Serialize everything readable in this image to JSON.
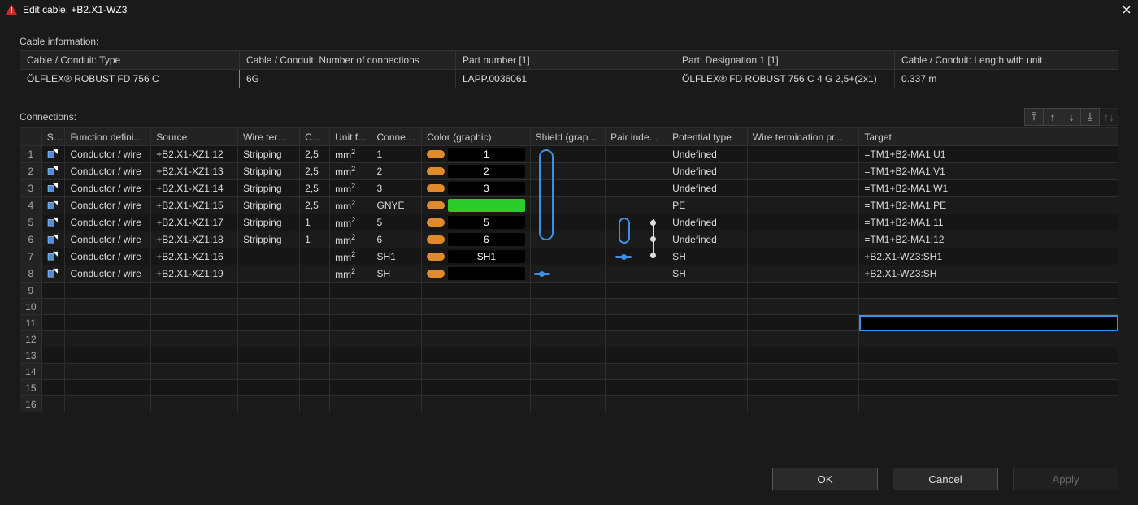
{
  "window": {
    "title": "Edit cable: +B2.X1-WZ3"
  },
  "section_titles": {
    "cable_info": "Cable information:",
    "connections": "Connections:"
  },
  "info": {
    "headers": {
      "type": "Cable / Conduit: Type",
      "num_conn": "Cable / Conduit: Number of connections",
      "part_no": "Part number [1]",
      "designation": "Part: Designation 1 [1]",
      "length": "Cable / Conduit: Length with unit"
    },
    "values": {
      "type": "ÖLFLEX® ROBUST FD 756 C",
      "num_conn": "6G",
      "part_no": "LAPP.0036061",
      "designation": "ÖLFLEX® FD ROBUST 756 C 4 G 2,5+(2x1)",
      "length": "0.337 m"
    }
  },
  "toolbar_icons": {
    "move_top": "⤒",
    "move_up": "↑",
    "move_down": "↓",
    "move_bottom": "⤓",
    "sort": "↑↓"
  },
  "columns": {
    "rownum": "",
    "status": "Sta...",
    "func": "Function defini...",
    "source": "Source",
    "wire_term": "Wire termi...",
    "cross": "Co...",
    "unit": "Unit f...",
    "conn": "Connec...",
    "color": "Color (graphic)",
    "shield": "Shield (grap...",
    "pair": "Pair index ...",
    "potential": "Potential type",
    "wire_term_proc": "Wire termination pr...",
    "target": "Target"
  },
  "column_widths": {
    "rownum": 26,
    "status": 28,
    "func": 103,
    "source": 104,
    "wire_term": 74,
    "cross": 36,
    "unit": 50,
    "conn": 60,
    "color": 130,
    "shield": 90,
    "pair": 74,
    "potential": 96,
    "wire_term_proc": 134,
    "target": 310
  },
  "colors": {
    "orange": "#e08a2b",
    "green": "#2dcc2d",
    "black": "#000000",
    "shield_blue": "#3d8fe0",
    "header_bg": "#232323",
    "row_bg": "#161616",
    "row_alt": "#1b1b1b",
    "border": "#2e2e2e",
    "selection": "#3d8fe0"
  },
  "rows": [
    {
      "n": 1,
      "func": "Conductor / wire",
      "source": "+B2.X1-XZ1:12",
      "wire_term": "Stripping",
      "cross": "2,5",
      "unit": "mm²",
      "conn": "1",
      "pill": "orange",
      "swatch": "black",
      "swatch_label": "1",
      "shield": "cap_start",
      "pair": "",
      "pot": "Undefined",
      "target": "=TM1+B2-MA1:U1"
    },
    {
      "n": 2,
      "func": "Conductor / wire",
      "source": "+B2.X1-XZ1:13",
      "wire_term": "Stripping",
      "cross": "2,5",
      "unit": "mm²",
      "conn": "2",
      "pill": "orange",
      "swatch": "black",
      "swatch_label": "2",
      "shield": "cap_mid",
      "pair": "",
      "pot": "Undefined",
      "target": "=TM1+B2-MA1:V1"
    },
    {
      "n": 3,
      "func": "Conductor / wire",
      "source": "+B2.X1-XZ1:14",
      "wire_term": "Stripping",
      "cross": "2,5",
      "unit": "mm²",
      "conn": "3",
      "pill": "orange",
      "swatch": "black",
      "swatch_label": "3",
      "shield": "cap_mid",
      "pair": "",
      "pot": "Undefined",
      "target": "=TM1+B2-MA1:W1"
    },
    {
      "n": 4,
      "func": "Conductor / wire",
      "source": "+B2.X1-XZ1:15",
      "wire_term": "Stripping",
      "cross": "2,5",
      "unit": "mm²",
      "conn": "GNYE",
      "pill": "orange",
      "swatch": "green",
      "swatch_label": "",
      "shield": "cap_mid",
      "pair": "",
      "pot": "PE",
      "target": "=TM1+B2-MA1:PE"
    },
    {
      "n": 5,
      "func": "Conductor / wire",
      "source": "+B2.X1-XZ1:17",
      "wire_term": "Stripping",
      "cross": "1",
      "unit": "mm²",
      "conn": "5",
      "pill": "orange",
      "swatch": "black",
      "swatch_label": "5",
      "shield": "cap_mid",
      "pair": "pair_top",
      "pot": "Undefined",
      "target": "=TM1+B2-MA1:11"
    },
    {
      "n": 6,
      "func": "Conductor / wire",
      "source": "+B2.X1-XZ1:18",
      "wire_term": "Stripping",
      "cross": "1",
      "unit": "mm²",
      "conn": "6",
      "pill": "orange",
      "swatch": "black",
      "swatch_label": "6",
      "shield": "cap_end",
      "pair": "pair_bot",
      "pot": "Undefined",
      "target": "=TM1+B2-MA1:12"
    },
    {
      "n": 7,
      "func": "Conductor / wire",
      "source": "+B2.X1-XZ1:16",
      "wire_term": "",
      "cross": "",
      "unit": "mm²",
      "conn": "SH1",
      "pill": "orange",
      "swatch": "black",
      "swatch_label": "SH1",
      "shield": "",
      "pair": "pair_dash",
      "pot": "SH",
      "target": "+B2.X1-WZ3:SH1"
    },
    {
      "n": 8,
      "func": "Conductor / wire",
      "source": "+B2.X1-XZ1:19",
      "wire_term": "",
      "cross": "",
      "unit": "mm²",
      "conn": "SH",
      "pill": "orange",
      "swatch": "black",
      "swatch_label": "",
      "shield": "dash",
      "pair": "",
      "pot": "SH",
      "target": "+B2.X1-WZ3:SH"
    }
  ],
  "empty_row_count": 8,
  "selected_cell": {
    "row": 11,
    "col": "target"
  },
  "footer": {
    "ok": "OK",
    "cancel": "Cancel",
    "apply": "Apply"
  }
}
